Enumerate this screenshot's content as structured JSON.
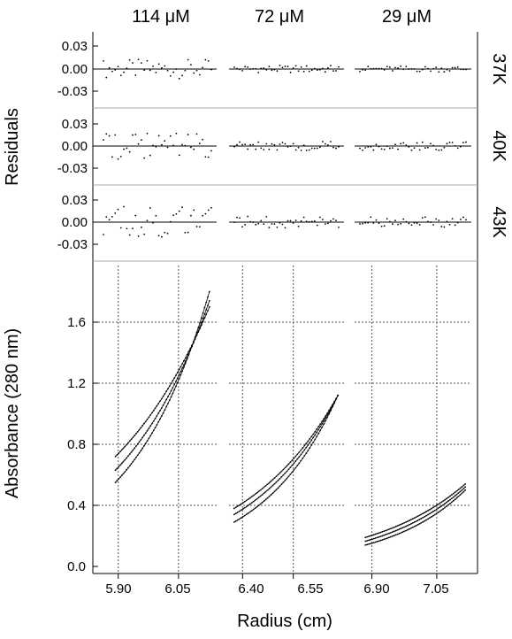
{
  "chart_data": {
    "type": "scatter",
    "title": "",
    "xlabel": "Radius (cm)",
    "ylabel_top": "Residuals",
    "ylabel_bottom": "Absorbance (280 nm)",
    "column_titles": [
      "114 μM",
      "72 μM",
      "29 μM"
    ],
    "row_labels": [
      "37K",
      "40K",
      "43K"
    ],
    "residual_ylim": [
      -0.05,
      0.05
    ],
    "residual_ticks": [
      "0.03",
      "0.00",
      "-0.03"
    ],
    "residual_tick_values": [
      0.03,
      0.0,
      -0.03
    ],
    "absorbance_ylim": [
      0.0,
      2.0
    ],
    "absorbance_ticks": [
      "0.0",
      "0.4",
      "0.8",
      "1.2",
      "1.6"
    ],
    "absorbance_tick_values": [
      0.0,
      0.4,
      0.8,
      1.2,
      1.6
    ],
    "grid": true,
    "columns": [
      {
        "title": "114 μM",
        "xlim": [
          5.85,
          6.145
        ],
        "x_ticks": [
          "5.90",
          "6.05"
        ],
        "x_tick_values": [
          5.9,
          6.05
        ],
        "absorbance_series": [
          {
            "r_start": 5.893,
            "r_end": 6.127,
            "a_start": 0.72,
            "a_end": 1.7
          },
          {
            "r_start": 5.893,
            "r_end": 6.127,
            "a_start": 0.63,
            "a_end": 1.74
          },
          {
            "r_start": 5.893,
            "r_end": 6.127,
            "a_start": 0.55,
            "a_end": 1.8
          }
        ],
        "residuals": {
          "37K": {
            "count": 38,
            "amplitude": 0.013
          },
          "40K": {
            "count": 38,
            "amplitude": 0.018
          },
          "43K": {
            "count": 38,
            "amplitude": 0.022
          }
        }
      },
      {
        "title": "72 μM",
        "xlim": [
          6.36,
          6.7
        ],
        "x_ticks": [
          "6.40",
          "6.55"
        ],
        "x_tick_values": [
          6.4,
          6.55
        ],
        "absorbance_series": [
          {
            "r_start": 6.375,
            "r_end": 6.682,
            "a_start": 0.38,
            "a_end": 1.12
          },
          {
            "r_start": 6.375,
            "r_end": 6.682,
            "a_start": 0.34,
            "a_end": 1.12
          },
          {
            "r_start": 6.375,
            "r_end": 6.682,
            "a_start": 0.29,
            "a_end": 1.12
          }
        ],
        "residuals": {
          "37K": {
            "count": 40,
            "amplitude": 0.005
          },
          "40K": {
            "count": 40,
            "amplitude": 0.006
          },
          "43K": {
            "count": 40,
            "amplitude": 0.008
          }
        }
      },
      {
        "title": "29 μM",
        "xlim": [
          6.86,
          7.13
        ],
        "x_ticks": [
          "6.90",
          "7.05"
        ],
        "x_tick_values": [
          6.9,
          7.05
        ],
        "absorbance_series": [
          {
            "r_start": 6.885,
            "r_end": 7.116,
            "a_start": 0.19,
            "a_end": 0.54
          },
          {
            "r_start": 6.885,
            "r_end": 7.116,
            "a_start": 0.165,
            "a_end": 0.52
          },
          {
            "r_start": 6.885,
            "r_end": 7.116,
            "a_start": 0.14,
            "a_end": 0.5
          }
        ],
        "residuals": {
          "37K": {
            "count": 40,
            "amplitude": 0.004
          },
          "40K": {
            "count": 40,
            "amplitude": 0.006
          },
          "43K": {
            "count": 40,
            "amplitude": 0.007
          }
        }
      }
    ]
  }
}
